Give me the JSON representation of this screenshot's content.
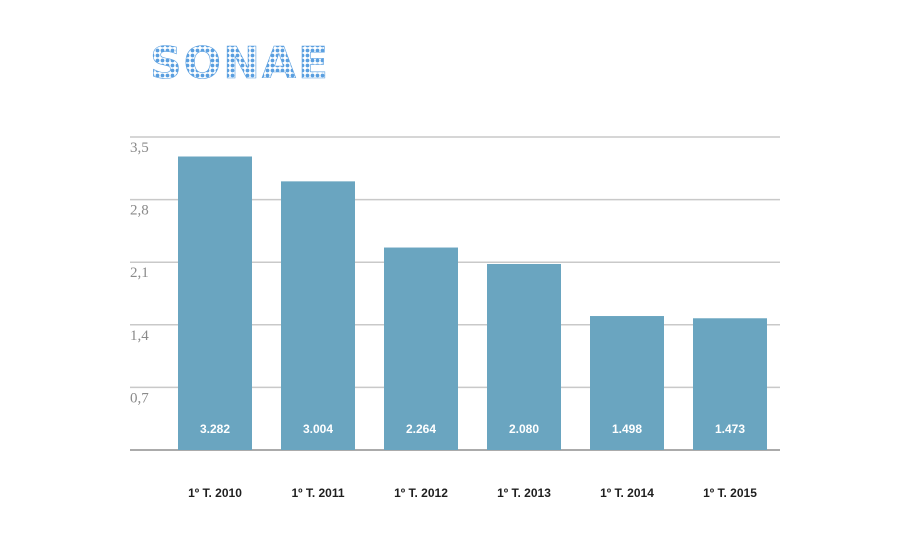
{
  "logo": {
    "text": "SONAE",
    "color": "#5a9fe0"
  },
  "colors": {
    "bar": "#6aa5c0",
    "grid": "#c9c9c9",
    "data_label": "#ffffff"
  },
  "chart_data": {
    "type": "bar",
    "categories": [
      "1º T. 2010",
      "1º T. 2011",
      "1º T. 2012",
      "1º T. 2013",
      "1º T. 2014",
      "1º T. 2015"
    ],
    "values": [
      3.282,
      3.004,
      2.264,
      2.08,
      1.498,
      1.473
    ],
    "data_labels": [
      "3.282",
      "3.004",
      "2.264",
      "2.080",
      "1.498",
      "1.473"
    ],
    "yticks": [
      "0,7",
      "1,4",
      "2,1",
      "2,8",
      "3,5"
    ],
    "ytick_values": [
      0.7,
      1.4,
      2.1,
      2.8,
      3.5
    ],
    "ylim": [
      0,
      3.5
    ],
    "grid": true,
    "title": "",
    "xlabel": "",
    "ylabel": ""
  }
}
